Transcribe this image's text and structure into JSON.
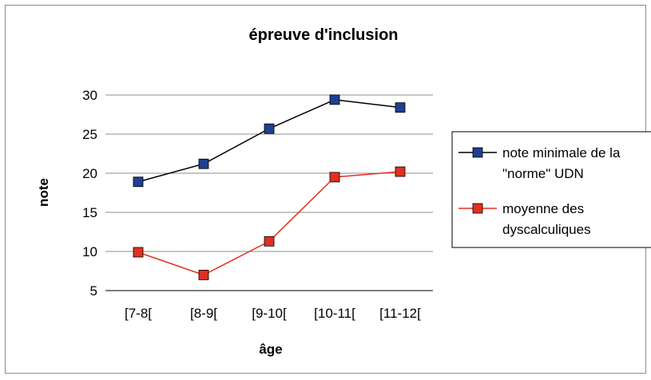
{
  "chart_data": {
    "type": "line",
    "title": "épreuve d'inclusion",
    "xlabel": "âge",
    "ylabel": "note",
    "categories": [
      "[7-8[",
      "[8-9[",
      "[9-10[",
      "[10-11[",
      "[11-12["
    ],
    "ylim": [
      5,
      30
    ],
    "yticks": [
      5,
      10,
      15,
      20,
      25,
      30
    ],
    "grid": true,
    "legend_position": "right",
    "series": [
      {
        "name_lines": [
          "note minimale de la",
          "\"norme\" UDN"
        ],
        "values": [
          18.9,
          21.2,
          25.7,
          29.4,
          28.4
        ],
        "color": "#1f3f8f",
        "marker": "square"
      },
      {
        "name_lines": [
          "moyenne des",
          "dyscalculiques"
        ],
        "values": [
          9.9,
          7.0,
          11.3,
          19.5,
          20.2
        ],
        "color": "#e03020",
        "marker": "square"
      }
    ]
  }
}
